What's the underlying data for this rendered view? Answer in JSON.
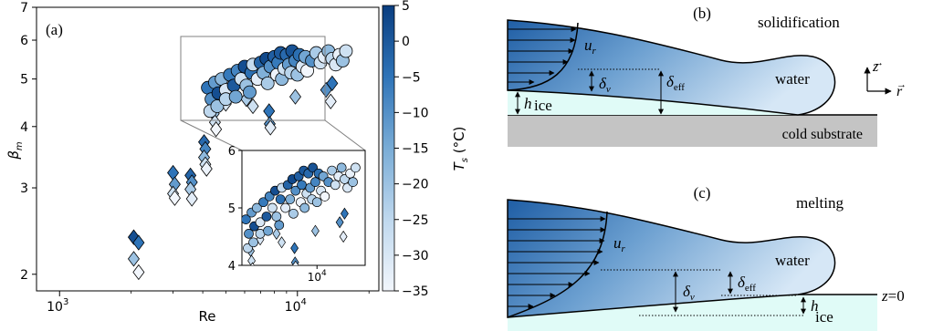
{
  "panel_a": {
    "label": "(a)",
    "xlabel": "Re",
    "ylabel_sym": "β",
    "ylabel_sub": "m",
    "x_ticks": [
      {
        "base": "10",
        "exp": "3"
      },
      {
        "base": "10",
        "exp": "4"
      }
    ],
    "y_ticks": [
      "2",
      "3",
      "4",
      "5",
      "6",
      "7"
    ],
    "inset_y_ticks": [
      "4",
      "5",
      "6"
    ],
    "inset_x_tick": {
      "base": "10",
      "exp": "4"
    },
    "colorbar": {
      "label_sym": "T",
      "label_sub": "s",
      "label_unit": " (°C)",
      "ticks": [
        "5",
        "0",
        "−5",
        "−10",
        "−15",
        "−20",
        "−25",
        "−30",
        "−35"
      ],
      "range": [
        -35,
        5
      ],
      "color_cold": "#f2f6fc",
      "color_warm": "#0a3e80"
    }
  },
  "chart_data": {
    "type": "scatter",
    "xlabel": "Re",
    "ylabel": "β_m",
    "x_scale": "log",
    "y_scale": "log",
    "xlim": [
      800,
      22000
    ],
    "ylim": [
      1.85,
      7
    ],
    "colorbar_label": "T_s (°C)",
    "clim": [
      -35,
      5
    ],
    "series": [
      {
        "marker": "diamond",
        "points": [
          [
            2050,
            2.38,
            2
          ],
          [
            2150,
            2.32,
            -5
          ],
          [
            2050,
            2.15,
            -20
          ],
          [
            2150,
            2.02,
            -35
          ],
          [
            3000,
            3.22,
            -5
          ],
          [
            3050,
            3.05,
            -12
          ],
          [
            3000,
            2.92,
            -28
          ],
          [
            3050,
            2.86,
            -35
          ],
          [
            3550,
            3.18,
            -2
          ],
          [
            3600,
            3.08,
            -10
          ],
          [
            3550,
            2.98,
            -22
          ],
          [
            3600,
            2.85,
            -32
          ],
          [
            4050,
            3.72,
            -3
          ],
          [
            4100,
            3.6,
            -8
          ],
          [
            4050,
            3.46,
            -18
          ],
          [
            4100,
            3.35,
            -28
          ],
          [
            4150,
            3.28,
            -34
          ],
          [
            4450,
            4.25,
            -20
          ],
          [
            4500,
            4.08,
            -28
          ],
          [
            4550,
            3.95,
            -35
          ],
          [
            5000,
            4.45,
            -30
          ],
          [
            6100,
            4.55,
            -22
          ],
          [
            6500,
            4.4,
            -28
          ],
          [
            7600,
            4.3,
            -5
          ],
          [
            7650,
            4.05,
            -10
          ],
          [
            7700,
            3.98,
            -32
          ],
          [
            9800,
            4.6,
            -20
          ],
          [
            13200,
            4.75,
            -10
          ],
          [
            14000,
            4.9,
            -5
          ],
          [
            13800,
            4.5,
            -32
          ]
        ]
      },
      {
        "marker": "circle",
        "points": [
          [
            4200,
            4.8,
            -5
          ],
          [
            4350,
            4.55,
            -10
          ],
          [
            4300,
            4.3,
            -25
          ],
          [
            4500,
            4.92,
            -12
          ],
          [
            4650,
            4.68,
            2
          ],
          [
            4600,
            4.4,
            -20
          ],
          [
            4800,
            5.0,
            -18
          ],
          [
            5000,
            4.75,
            -30
          ],
          [
            5200,
            5.1,
            -6
          ],
          [
            5000,
            4.55,
            -24
          ],
          [
            5400,
            4.85,
            0
          ],
          [
            5600,
            5.2,
            -8
          ],
          [
            5500,
            4.6,
            -14
          ],
          [
            5800,
            5.0,
            -28
          ],
          [
            6000,
            5.3,
            2
          ],
          [
            6100,
            4.85,
            -20
          ],
          [
            6400,
            5.15,
            -4
          ],
          [
            6500,
            5.35,
            -26
          ],
          [
            6300,
            4.7,
            -12
          ],
          [
            6800,
            5.0,
            -32
          ],
          [
            7000,
            5.4,
            -2
          ],
          [
            7200,
            5.15,
            -16
          ],
          [
            7400,
            5.5,
            3
          ],
          [
            7500,
            4.9,
            -22
          ],
          [
            7700,
            5.3,
            -10
          ],
          [
            8000,
            5.55,
            -1
          ],
          [
            8200,
            5.1,
            -34
          ],
          [
            8300,
            5.4,
            -6
          ],
          [
            8500,
            5.65,
            0
          ],
          [
            8600,
            5.0,
            -18
          ],
          [
            8800,
            5.25,
            -28
          ],
          [
            9000,
            5.6,
            -3
          ],
          [
            9200,
            5.35,
            -12
          ],
          [
            9400,
            5.15,
            -24
          ],
          [
            9500,
            5.7,
            1
          ],
          [
            9800,
            5.45,
            -8
          ],
          [
            10000,
            5.1,
            -20
          ],
          [
            10200,
            5.6,
            -4
          ],
          [
            10500,
            5.3,
            -30
          ],
          [
            10800,
            5.55,
            -14
          ],
          [
            11000,
            5.2,
            -35
          ],
          [
            11500,
            5.45,
            -10
          ],
          [
            12000,
            5.65,
            -22
          ],
          [
            12500,
            5.4,
            -28
          ],
          [
            13000,
            5.55,
            -32
          ],
          [
            13500,
            5.7,
            -18
          ],
          [
            14000,
            5.5,
            -25
          ],
          [
            14500,
            5.35,
            -30
          ],
          [
            15000,
            5.6,
            -33
          ],
          [
            15500,
            5.45,
            -20
          ],
          [
            16000,
            5.7,
            -28
          ]
        ]
      }
    ],
    "inset": {
      "xlim": [
        4000,
        18000
      ],
      "ylim": [
        4,
        6
      ],
      "x_scale": "log"
    }
  },
  "panel_b": {
    "label": "(b)",
    "title": "solidification",
    "u_sym": "u",
    "u_sub": "r",
    "dv_sym": "δ",
    "dv_sub": "v",
    "deff_sym": "δ",
    "deff_sub": "eff",
    "water": "water",
    "ice": "ice",
    "h": "h",
    "substrate": "cold substrate",
    "axis_z": "z",
    "axis_r": "r",
    "arrow_glyph": "→"
  },
  "panel_c": {
    "label": "(c)",
    "title": "melting",
    "u_sym": "u",
    "u_sub": "r",
    "dv_sym": "δ",
    "dv_sub": "v",
    "deff_sym": "δ",
    "deff_sub": "eff",
    "water": "water",
    "ice": "ice",
    "h": "h",
    "z0_sym": "z",
    "z0_rest": "=0"
  },
  "colors": {
    "water_deep": "#1b5da6",
    "water_light": "#cfe2f5",
    "ice": "#e0fbf7",
    "substrate": "#c4c4c4"
  }
}
